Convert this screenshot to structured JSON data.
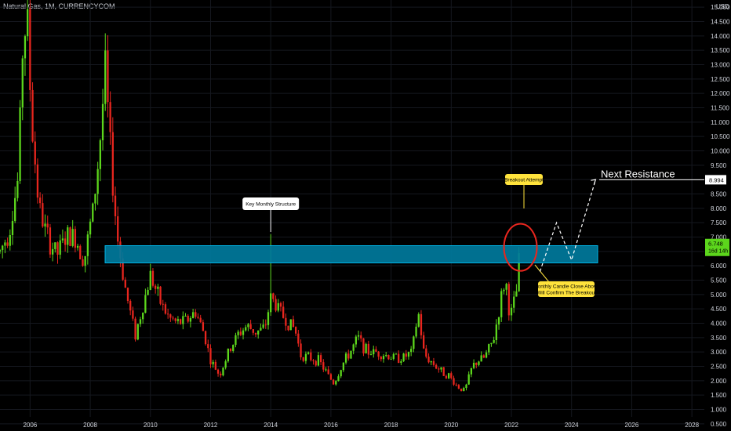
{
  "header": {
    "symbol_title": "Natural Gas, 1M, CURRENCYCOM"
  },
  "chart_data": {
    "type": "candlestick",
    "title": "Natural Gas, 1M, CURRENCYCOM",
    "y_unit": "USD",
    "ylim": [
      0.25,
      15.25
    ],
    "xlim": [
      2005.0,
      2029.3
    ],
    "y_ticks": [
      "0.500",
      "1.000",
      "1.500",
      "2.000",
      "2.500",
      "3.000",
      "3.500",
      "4.000",
      "4.500",
      "5.000",
      "5.500",
      "6.000",
      "6.500",
      "7.000",
      "7.500",
      "8.000",
      "8.500",
      "9.000",
      "9.500",
      "10.000",
      "10.500",
      "11.000",
      "11.500",
      "12.000",
      "12.500",
      "13.000",
      "13.500",
      "14.000",
      "14.500",
      "15.000"
    ],
    "x_ticks": [
      "2006",
      "2008",
      "2010",
      "2012",
      "2014",
      "2016",
      "2018",
      "2020",
      "2022",
      "2024",
      "2026",
      "2028"
    ],
    "colors": {
      "up": "#5cd61c",
      "down": "#e8261e",
      "zone": "#00799c",
      "zone_border": "#00b4e6",
      "callout": "#ffe33c",
      "circle": "#e8261e",
      "current_price_bg": "#5cd61c"
    },
    "anchors": [
      [
        2005.0,
        6.5
      ],
      [
        2005.3,
        7.2
      ],
      [
        2005.6,
        9.0
      ],
      [
        2005.75,
        13.5
      ],
      [
        2005.9,
        14.8
      ],
      [
        2006.05,
        11.0
      ],
      [
        2006.3,
        8.0
      ],
      [
        2006.6,
        6.9
      ],
      [
        2006.9,
        6.4
      ],
      [
        2007.2,
        7.0
      ],
      [
        2007.5,
        7.0
      ],
      [
        2007.8,
        6.2
      ],
      [
        2008.1,
        8.0
      ],
      [
        2008.3,
        10.0
      ],
      [
        2008.5,
        12.8
      ],
      [
        2008.7,
        9.5
      ],
      [
        2008.9,
        7.0
      ],
      [
        2009.2,
        5.0
      ],
      [
        2009.5,
        3.6
      ],
      [
        2009.8,
        4.8
      ],
      [
        2010.0,
        5.7
      ],
      [
        2010.3,
        4.8
      ],
      [
        2010.6,
        4.2
      ],
      [
        2010.9,
        4.0
      ],
      [
        2011.2,
        4.1
      ],
      [
        2011.5,
        4.4
      ],
      [
        2011.8,
        3.6
      ],
      [
        2012.0,
        2.7
      ],
      [
        2012.3,
        2.2
      ],
      [
        2012.6,
        3.0
      ],
      [
        2012.9,
        3.6
      ],
      [
        2013.2,
        3.9
      ],
      [
        2013.5,
        3.7
      ],
      [
        2013.8,
        3.8
      ],
      [
        2014.0,
        4.9
      ],
      [
        2014.2,
        4.6
      ],
      [
        2014.5,
        4.1
      ],
      [
        2014.8,
        3.8
      ],
      [
        2015.0,
        2.9
      ],
      [
        2015.3,
        2.8
      ],
      [
        2015.6,
        2.7
      ],
      [
        2015.9,
        2.2
      ],
      [
        2016.1,
        1.9
      ],
      [
        2016.4,
        2.6
      ],
      [
        2016.7,
        3.1
      ],
      [
        2016.9,
        3.5
      ],
      [
        2017.2,
        3.0
      ],
      [
        2017.5,
        3.0
      ],
      [
        2017.8,
        2.9
      ],
      [
        2018.1,
        2.8
      ],
      [
        2018.4,
        2.8
      ],
      [
        2018.7,
        3.0
      ],
      [
        2018.9,
        4.4
      ],
      [
        2019.1,
        2.9
      ],
      [
        2019.4,
        2.6
      ],
      [
        2019.7,
        2.3
      ],
      [
        2019.9,
        2.2
      ],
      [
        2020.2,
        1.8
      ],
      [
        2020.45,
        1.65
      ],
      [
        2020.7,
        2.5
      ],
      [
        2020.9,
        2.7
      ],
      [
        2021.1,
        2.8
      ],
      [
        2021.4,
        3.4
      ],
      [
        2021.65,
        4.8
      ],
      [
        2021.8,
        5.6
      ],
      [
        2021.95,
        4.2
      ],
      [
        2022.15,
        4.9
      ],
      [
        2022.3,
        6.75
      ]
    ],
    "annotations": {
      "structure_label": "Key Monthly Structure",
      "breakout_label": "Breakout Attempt",
      "confirm_label_line1": "Monthly Candle Close Above",
      "confirm_label_line2": "Will Confirm The Breakout",
      "next_resistance_label": "Next Resistance",
      "next_resistance_value": "8.994",
      "current_price": "6.748",
      "countdown": "16d 14h",
      "zone_low": 6.1,
      "zone_high": 6.7,
      "structure_pivot": [
        2014.0,
        7.1
      ],
      "breakout_point": [
        2022.3,
        6.75
      ],
      "projection": [
        [
          2022.95,
          5.8
        ],
        [
          2023.5,
          7.5
        ],
        [
          2024.0,
          6.2
        ],
        [
          2024.8,
          9.0
        ]
      ]
    }
  }
}
